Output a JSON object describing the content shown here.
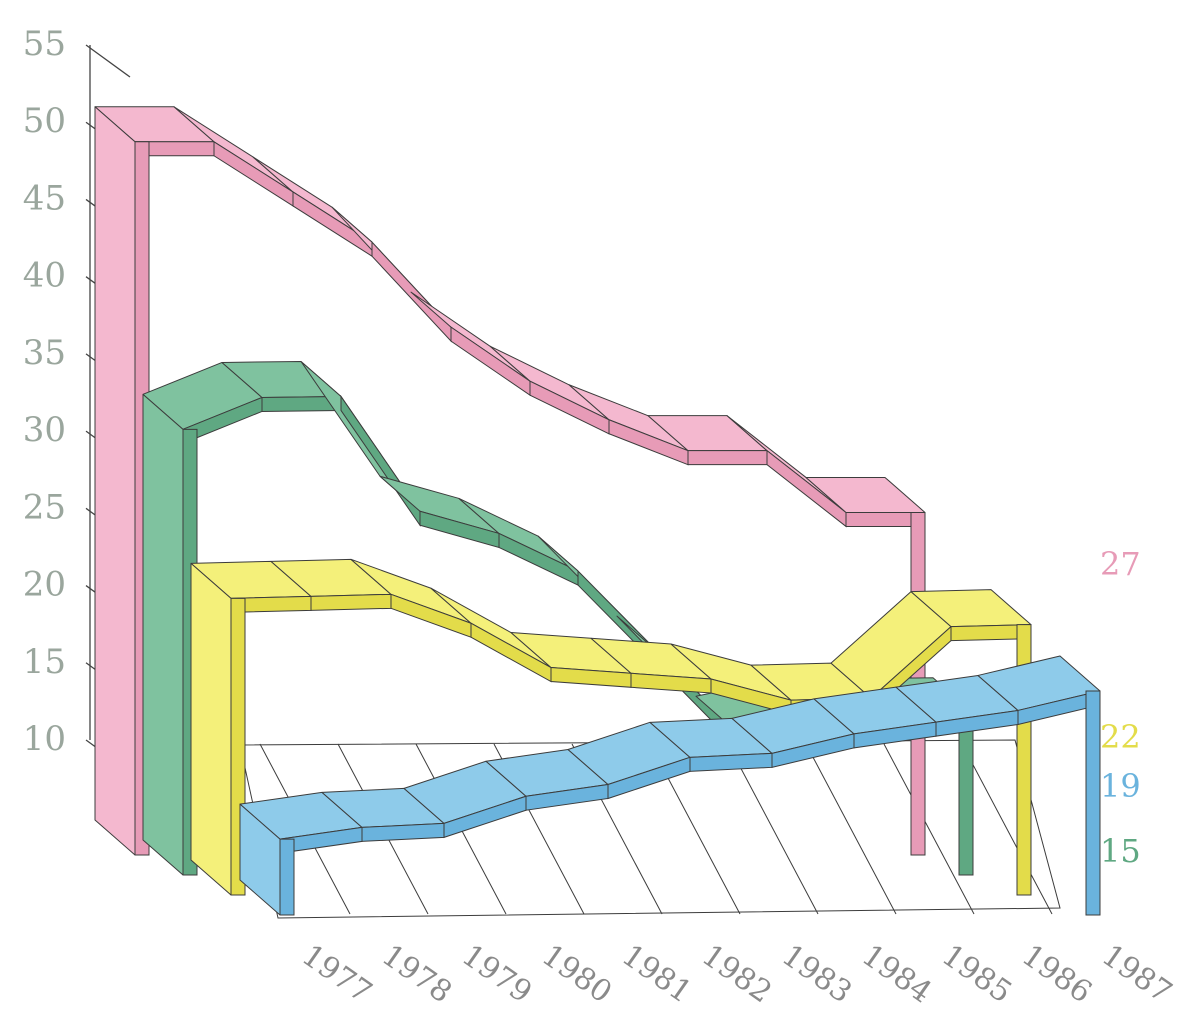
{
  "chart_data": {
    "type": "line",
    "style": "3d-ribbon",
    "x": [
      "1977",
      "1978",
      "1979",
      "1980",
      "1981",
      "1982",
      "1983",
      "1984",
      "1985",
      "1986",
      "1987"
    ],
    "y_ticks": [
      "10",
      "15",
      "20",
      "25",
      "30",
      "35",
      "40",
      "45",
      "50",
      "55"
    ],
    "ylim": [
      10,
      55
    ],
    "series": [
      {
        "color": "#f4b8cf",
        "dark": "#e79bb7",
        "end_label": "27",
        "values": [
          51,
          51,
          null,
          44.5,
          39,
          35.5,
          33,
          31,
          31,
          27,
          27
        ]
      },
      {
        "color": "#7fc29f",
        "dark": "#5fa882",
        "end_label": "15",
        "values": [
          34,
          36,
          36,
          28.5,
          27,
          24.5,
          null,
          14,
          15,
          15,
          15
        ]
      },
      {
        "color": "#f4f07a",
        "dark": "#e3dc4a",
        "end_label": "22",
        "values": [
          25,
          25,
          25,
          23,
          20,
          19.5,
          19,
          17.5,
          17.5,
          22,
          22
        ]
      },
      {
        "color": "#8ecbea",
        "dark": "#6ab3dd",
        "end_label": "19",
        "values": [
          12,
          12.5,
          12.5,
          14,
          14.5,
          16,
          16,
          17,
          17.5,
          18,
          19
        ]
      }
    ]
  }
}
